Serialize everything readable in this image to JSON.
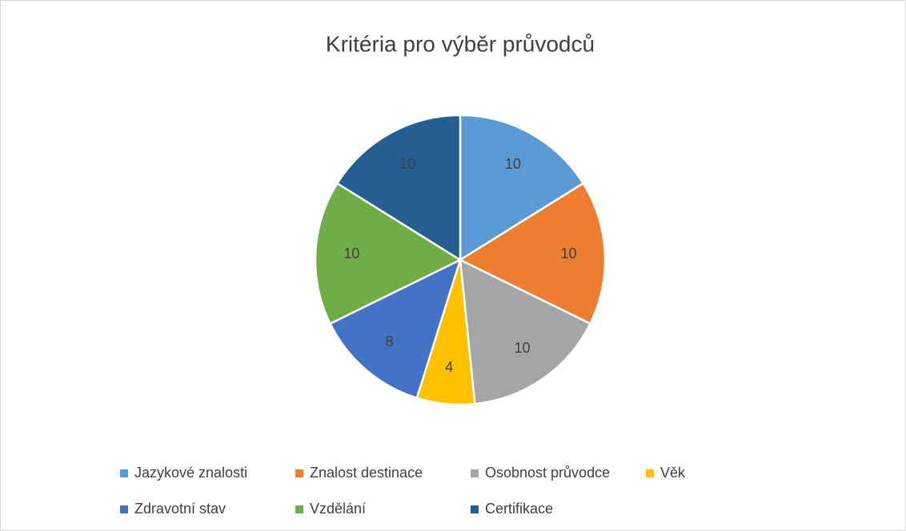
{
  "chart_data": {
    "type": "pie",
    "title": "Kritéria pro výběr průvodců",
    "categories": [
      "Jazykové znalosti",
      "Znalost destinace",
      "Osobnost průvodce",
      "Věk",
      "Zdravotní stav",
      "Vzdělání",
      "Certifikace"
    ],
    "values": [
      10,
      10,
      10,
      4,
      8,
      10,
      10
    ],
    "colors": [
      "#5b9bd5",
      "#ed7d31",
      "#a5a5a5",
      "#ffc000",
      "#4472c4",
      "#70ad47",
      "#255e91"
    ],
    "legend": "bottom"
  }
}
